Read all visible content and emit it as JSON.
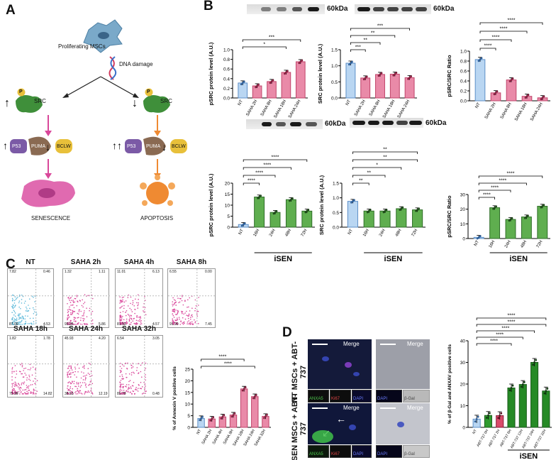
{
  "panels": {
    "a": "A",
    "b": "B",
    "c": "C",
    "d": "D"
  },
  "panel_a": {
    "top_label": "Proliferating MSCs",
    "dna_label": "DNA damage",
    "src": "SRC",
    "p": "P",
    "p53": "P53",
    "puma": "PUMA",
    "bclw": "BCLW",
    "senescence": "SENESCENCE",
    "apoptosis": "APOPTOSIS",
    "colors": {
      "pink": "#d9479a",
      "orange": "#ef8a32",
      "green": "#3f8f3a",
      "purple": "#7b5aa6",
      "yellow": "#e8c03a",
      "brown": "#8a6a52"
    }
  },
  "panel_b": {
    "kda": "60kDa",
    "group_label": "iSEN",
    "chart_data": [
      {
        "type": "bar",
        "ylabel": "pSRC protein level (A.U.)",
        "categories": [
          "NT",
          "SAHA 2H",
          "SAHA 8H",
          "SAHA 18H",
          "SAHA 24H"
        ],
        "values": [
          0.31,
          0.25,
          0.34,
          0.53,
          0.75
        ],
        "ylim": [
          0,
          1.0
        ],
        "yticks": [
          "0.0",
          "0.2",
          "0.4",
          "0.6",
          "0.8",
          "1.0"
        ],
        "sig": [
          [
            "*",
            "NT vs SAHA 18H"
          ],
          [
            "***",
            "NT vs SAHA 24H"
          ]
        ]
      },
      {
        "type": "bar",
        "ylabel": "SRC protein level (A.U.)",
        "categories": [
          "NT",
          "SAHA 2H",
          "SAHA 8H",
          "SAHA 18H",
          "SAHA 24H"
        ],
        "values": [
          1.08,
          0.62,
          0.73,
          0.74,
          0.63
        ],
        "ylim": [
          0,
          1.5
        ],
        "yticks": [
          "0.0",
          "0.5",
          "1.0",
          "1.5"
        ],
        "sig": [
          [
            "***",
            "NT vs 2H"
          ],
          [
            "**",
            "NT vs 8H"
          ],
          [
            "**",
            "NT vs 18H"
          ],
          [
            "***",
            "NT vs 24H"
          ]
        ]
      },
      {
        "type": "bar",
        "ylabel": "pSRC/SRC Ratio",
        "categories": [
          "NT",
          "SAHA 2H",
          "SAHA 8H",
          "SAHA 18H",
          "SAHA 24H"
        ],
        "values": [
          0.83,
          0.16,
          0.42,
          0.09,
          0.06
        ],
        "ylim": [
          0,
          1.0
        ],
        "yticks": [
          "0.0",
          "0.2",
          "0.4",
          "0.6",
          "0.8",
          "1.0"
        ],
        "sig": [
          [
            "****",
            ""
          ],
          [
            "****",
            ""
          ],
          [
            "****",
            ""
          ],
          [
            "****",
            ""
          ]
        ]
      },
      {
        "type": "bar",
        "ylabel": "pSRC protein level (A.U.)",
        "categories": [
          "NT",
          "16H",
          "24H",
          "48H",
          "72H"
        ],
        "values": [
          1.2,
          13.7,
          6.7,
          12.5,
          7.3
        ],
        "ylim": [
          0,
          20
        ],
        "yticks": [
          "0",
          "5",
          "10",
          "15",
          "20"
        ],
        "sig": [
          [
            "****",
            ""
          ],
          [
            "****",
            ""
          ],
          [
            "****",
            ""
          ],
          [
            "****",
            ""
          ]
        ]
      },
      {
        "type": "bar",
        "ylabel": "SRC protein level (A.U.)",
        "categories": [
          "NT",
          "16H",
          "24H",
          "48H",
          "72H"
        ],
        "values": [
          0.88,
          0.55,
          0.55,
          0.63,
          0.59
        ],
        "ylim": [
          0,
          1.5
        ],
        "yticks": [
          "0.0",
          "0.5",
          "1.0",
          "1.5"
        ],
        "sig": [
          [
            "**",
            ""
          ],
          [
            "**",
            ""
          ],
          [
            "*",
            ""
          ],
          [
            "**",
            ""
          ],
          [
            "**",
            ""
          ]
        ]
      },
      {
        "type": "bar",
        "ylabel": "pSRC/SRC Ratio",
        "categories": [
          "NT",
          "16H",
          "24H",
          "48H",
          "72H"
        ],
        "values": [
          0.8,
          21,
          13,
          14.7,
          22
        ],
        "ylim": [
          0,
          30
        ],
        "yticks": [
          "0",
          "10",
          "20",
          "30"
        ],
        "sig": [
          [
            "****",
            ""
          ],
          [
            "****",
            ""
          ],
          [
            "****",
            ""
          ],
          [
            "****",
            ""
          ]
        ]
      }
    ]
  },
  "panel_c": {
    "plots": [
      {
        "title": "NT",
        "q": [
          "7.82",
          "0.46",
          "87.09",
          "4.53"
        ]
      },
      {
        "title": "SAHA 2h",
        "q": [
          "1.32",
          "1.11",
          "93.05",
          "5.86"
        ]
      },
      {
        "title": "SAHA 4h",
        "q": [
          "11.01",
          "6.13",
          "81.53",
          "4.57"
        ]
      },
      {
        "title": "SAHA 8h",
        "q": [
          "6.55",
          "0.00",
          "91.90",
          "7.45"
        ]
      },
      {
        "title": "SAHA 18h",
        "q": [
          "1.82",
          "1.78",
          "75.98",
          "14.82"
        ]
      },
      {
        "title": "SAHA 24h",
        "q": [
          "45.93",
          "4.20",
          "38.53",
          "12.19"
        ]
      },
      {
        "title": "SAHA 32h",
        "q": [
          "6.54",
          "3.05",
          "85.79",
          "0.48"
        ]
      }
    ],
    "chart_data": {
      "type": "bar",
      "ylabel": "% of Annexin V positive cells",
      "categories": [
        "NT",
        "SAHA 2H",
        "SAHA 4H",
        "SAHA 8H",
        "SAHA 18H",
        "SAHA 24H",
        "SAHA 32H"
      ],
      "values": [
        3.8,
        3.6,
        4.5,
        5.3,
        16.5,
        13.2,
        4.7
      ],
      "ylim": [
        0,
        25
      ],
      "yticks": [
        "0",
        "5",
        "10",
        "15",
        "20",
        "25"
      ],
      "sig": [
        [
          "****",
          "NT vs SAHA 18H"
        ],
        [
          "****",
          "NT vs SAHA 24H"
        ]
      ]
    }
  },
  "panel_d": {
    "row1_label": "NT MSCs + ABT-737",
    "row2_label": "iSEN MSCs + ABT-737",
    "merge": "Merge",
    "anxa5": "ANXA5",
    "ki67": "Ki67",
    "dapi": "DAPI",
    "bgal": "β-Gal",
    "chart_data": {
      "type": "bar",
      "ylabel": "% of β-Gal and ANXAV positive cells",
      "categories": [
        "NT",
        "ABT-737 0H",
        "ABT-737 2H",
        "ABT-737 6H",
        "ABT-737 12H",
        "ABT-737 24H",
        "ABT-737 32H"
      ],
      "values": [
        3.8,
        5.5,
        5.4,
        18.2,
        19.8,
        30.0,
        16.8
      ],
      "ylim": [
        0,
        40
      ],
      "yticks": [
        "0",
        "10",
        "20",
        "30",
        "40"
      ],
      "group": "iSEN",
      "sig": [
        [
          "****",
          ""
        ],
        [
          "****",
          ""
        ],
        [
          "****",
          ""
        ],
        [
          "****",
          ""
        ],
        [
          "****",
          ""
        ]
      ]
    }
  }
}
